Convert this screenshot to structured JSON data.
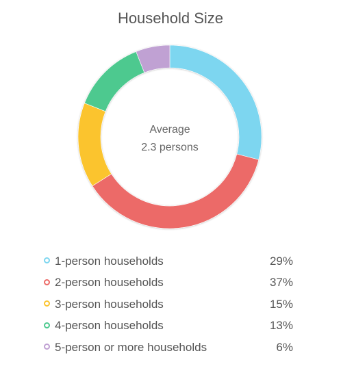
{
  "chart_data": {
    "type": "pie",
    "title": "Household Size",
    "center_text": [
      "Average",
      "2.3 persons"
    ],
    "categories": [
      "1-person households",
      "2-person households",
      "3-person households",
      "4-person households",
      "5-person or more households"
    ],
    "values": [
      29,
      37,
      15,
      13,
      6
    ],
    "value_labels": [
      "29%",
      "37%",
      "15%",
      "13%",
      "6%"
    ],
    "colors": [
      "#7dd6f0",
      "#ec6b68",
      "#fbc42f",
      "#4dc98f",
      "#c0a1d3"
    ],
    "legend_position": "bottom"
  }
}
